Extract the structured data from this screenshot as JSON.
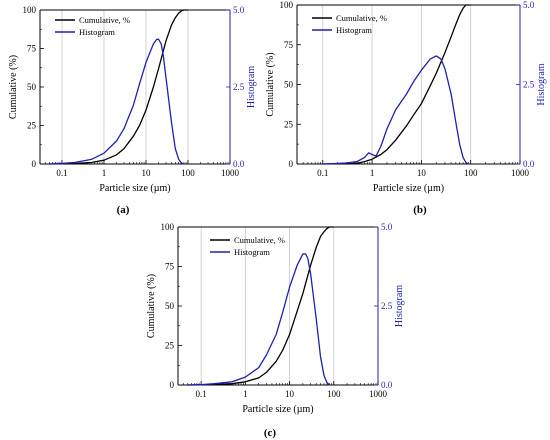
{
  "chart_data": [
    {
      "type": "line",
      "panel_label": "(a)",
      "xlabel": "Particle size (µm)",
      "ylabel": "Cumulative (%)",
      "y2label": "Histogram",
      "x_scale": "log",
      "xlim": [
        0.03,
        1000
      ],
      "ylim": [
        0,
        100
      ],
      "y2lim": [
        0,
        5.0
      ],
      "x_ticks": [
        "0.1",
        "1",
        "10",
        "100",
        "1000"
      ],
      "y_ticks": [
        "0",
        "25",
        "50",
        "75",
        "100"
      ],
      "y2_ticks": [
        "0.0",
        "2.5",
        "5.0"
      ],
      "grid": "vertical",
      "legend_position": "top-left",
      "colors": {
        "cumulative": "#000000",
        "histogram": "#1f1fb4"
      },
      "series": [
        {
          "name": "Cumulative, %",
          "axis": "left",
          "x": [
            0.05,
            0.1,
            0.2,
            0.5,
            1,
            2,
            3,
            5,
            7,
            10,
            15,
            20,
            30,
            40,
            50,
            60,
            70,
            80,
            90,
            100
          ],
          "y": [
            0,
            0.1,
            0.3,
            1,
            2.5,
            6,
            10,
            18,
            25,
            35,
            50,
            62,
            80,
            90,
            95,
            98,
            99.5,
            100,
            100,
            100
          ]
        },
        {
          "name": "Histogram",
          "axis": "right",
          "x": [
            0.05,
            0.1,
            0.2,
            0.5,
            1,
            2,
            3,
            5,
            7,
            10,
            15,
            18,
            20,
            23,
            26,
            30,
            40,
            50,
            60,
            70,
            80
          ],
          "y": [
            0,
            0.02,
            0.05,
            0.15,
            0.35,
            0.75,
            1.15,
            1.9,
            2.6,
            3.3,
            3.9,
            4.05,
            4.05,
            3.9,
            3.5,
            2.8,
            1.4,
            0.5,
            0.15,
            0.03,
            0
          ]
        }
      ]
    },
    {
      "type": "line",
      "panel_label": "(b)",
      "xlabel": "Particle size (µm)",
      "ylabel": "Cumulative (%)",
      "y2label": "Histogram",
      "x_scale": "log",
      "xlim": [
        0.03,
        1000
      ],
      "ylim": [
        0,
        100
      ],
      "y2lim": [
        0,
        5.0
      ],
      "x_ticks": [
        "0.1",
        "1",
        "10",
        "100",
        "1000"
      ],
      "y_ticks": [
        "0",
        "25",
        "50",
        "75",
        "100"
      ],
      "y2_ticks": [
        "0.0",
        "2.5",
        "5.0"
      ],
      "grid": "vertical",
      "legend_position": "top-center",
      "colors": {
        "cumulative": "#000000",
        "histogram": "#1f1fb4"
      },
      "series": [
        {
          "name": "Cumulative, %",
          "axis": "left",
          "x": [
            0.1,
            0.3,
            0.5,
            0.7,
            1,
            1.5,
            2,
            3,
            5,
            7,
            10,
            15,
            20,
            30,
            40,
            50,
            60,
            70,
            80,
            90,
            100
          ],
          "y": [
            0,
            0.2,
            0.5,
            1.5,
            3,
            6,
            9,
            15,
            24,
            31,
            38,
            49,
            57,
            70,
            80,
            88,
            94,
            98,
            100,
            100,
            100
          ]
        },
        {
          "name": "Histogram",
          "axis": "right",
          "x": [
            0.1,
            0.3,
            0.5,
            0.7,
            0.85,
            1,
            1.2,
            1.5,
            2,
            3,
            5,
            7,
            10,
            15,
            20,
            25,
            30,
            40,
            50,
            60,
            70,
            80,
            90
          ],
          "y": [
            0,
            0.03,
            0.08,
            0.2,
            0.35,
            0.3,
            0.25,
            0.55,
            1.1,
            1.7,
            2.2,
            2.6,
            2.95,
            3.3,
            3.4,
            3.3,
            3.0,
            2.2,
            1.3,
            0.6,
            0.2,
            0.05,
            0
          ]
        }
      ]
    },
    {
      "type": "line",
      "panel_label": "(c)",
      "xlabel": "Particle size (µm)",
      "ylabel": "Cumulative (%)",
      "y2label": "Histogram",
      "x_scale": "log",
      "xlim": [
        0.03,
        1000
      ],
      "ylim": [
        0,
        100
      ],
      "y2lim": [
        0,
        5.0
      ],
      "x_ticks": [
        "0.1",
        "1",
        "10",
        "100",
        "1000"
      ],
      "y_ticks": [
        "0",
        "25",
        "50",
        "75",
        "100"
      ],
      "y2_ticks": [
        "0.0",
        "2.5",
        "5.0"
      ],
      "grid": "vertical",
      "legend_position": "top-center",
      "colors": {
        "cumulative": "#000000",
        "histogram": "#1f1fb4"
      },
      "series": [
        {
          "name": "Cumulative, %",
          "axis": "left",
          "x": [
            0.05,
            0.1,
            0.2,
            0.5,
            1,
            2,
            3,
            5,
            7,
            10,
            15,
            20,
            30,
            40,
            50,
            60,
            70,
            80,
            90,
            100
          ],
          "y": [
            0,
            0.1,
            0.3,
            0.8,
            2,
            4.5,
            8,
            15,
            22,
            32,
            47,
            58,
            76,
            87,
            94,
            97,
            99,
            100,
            100,
            100
          ]
        },
        {
          "name": "Histogram",
          "axis": "right",
          "x": [
            0.05,
            0.1,
            0.2,
            0.5,
            1,
            2,
            3,
            5,
            7,
            10,
            15,
            20,
            23,
            26,
            30,
            40,
            50,
            60,
            70,
            80
          ],
          "y": [
            0,
            0.01,
            0.04,
            0.1,
            0.25,
            0.55,
            0.95,
            1.6,
            2.3,
            3.1,
            3.8,
            4.15,
            4.15,
            4.0,
            3.5,
            2.1,
            0.9,
            0.3,
            0.08,
            0
          ]
        }
      ]
    }
  ]
}
